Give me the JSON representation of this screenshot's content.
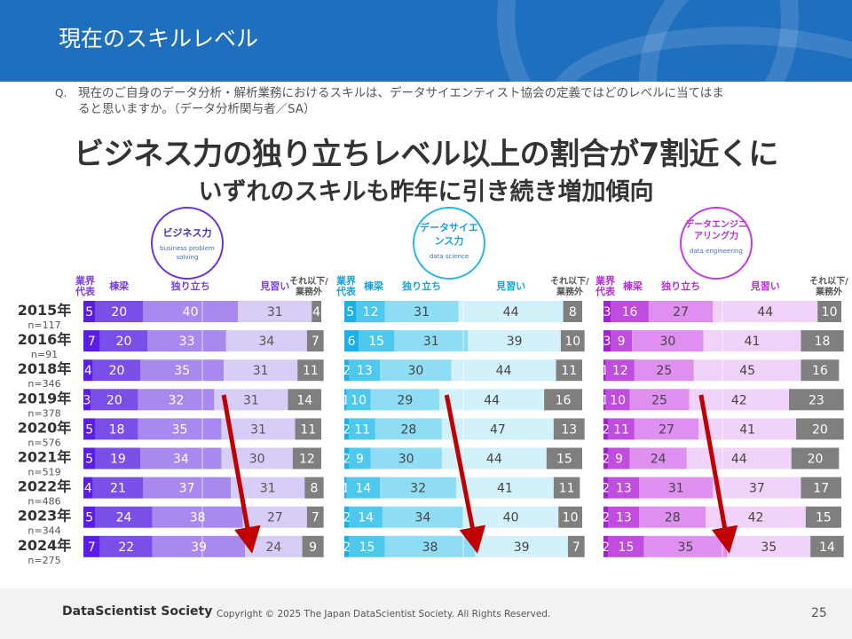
{
  "header": {
    "title": "現在のスキルレベル"
  },
  "question": {
    "label": "Q.",
    "text": "現在のご自身のデータ分析・解析業務におけるスキルは、データサイエンティスト協会の定義ではどのレベルに当てはまると思いますか。（データ分析関与者／SA）"
  },
  "headline": {
    "line1": "ビジネス力の独り立ちレベル以上の割合が7割近くに",
    "line2": "いずれのスキルも昨年に引き続き増加傾向"
  },
  "chart_data": {
    "type": "bar",
    "stacked": true,
    "percent": true,
    "categories": [
      {
        "year": "2015年",
        "n": "n=117"
      },
      {
        "year": "2016年",
        "n": "n=91"
      },
      {
        "year": "2018年",
        "n": "n=346"
      },
      {
        "year": "2019年",
        "n": "n=378"
      },
      {
        "year": "2020年",
        "n": "n=576"
      },
      {
        "year": "2021年",
        "n": "n=519"
      },
      {
        "year": "2022年",
        "n": "n=486"
      },
      {
        "year": "2023年",
        "n": "n=344"
      },
      {
        "year": "2024年",
        "n": "n=275"
      }
    ],
    "levels": [
      {
        "name": "業界代表",
        "label": "業界\n代表"
      },
      {
        "name": "棟梁",
        "label": "棟梁"
      },
      {
        "name": "独り立ち",
        "label": "独り立ち"
      },
      {
        "name": "見習い",
        "label": "見習い"
      },
      {
        "name": "それ以下/業務外",
        "label": "それ以下/\n業務外"
      }
    ],
    "panels": [
      {
        "key": "business",
        "title": "ビジネス力",
        "subtitle": "business problem solving",
        "accent": "#6a35e0",
        "label_color": "#7b3fe4",
        "colors": [
          "#5b1ce6",
          "#7a4fe8",
          "#a889ef",
          "#d8cdf7",
          "#7f7f7f"
        ],
        "text_colors": [
          "#ffffff",
          "#ffffff",
          "#ffffff",
          "#555555",
          "#ffffff"
        ],
        "values": [
          [
            5,
            20,
            40,
            31,
            4
          ],
          [
            7,
            20,
            33,
            34,
            7
          ],
          [
            4,
            20,
            35,
            31,
            11
          ],
          [
            3,
            20,
            32,
            31,
            14
          ],
          [
            5,
            18,
            35,
            31,
            11
          ],
          [
            5,
            19,
            34,
            30,
            12
          ],
          [
            4,
            21,
            37,
            31,
            8
          ],
          [
            5,
            24,
            38,
            27,
            7
          ],
          [
            7,
            22,
            39,
            24,
            9
          ]
        ]
      },
      {
        "key": "datascience",
        "title": "データサイエンス力",
        "subtitle": "data science",
        "accent": "#29b6e8",
        "label_color": "#17a3dc",
        "colors": [
          "#1ab0e8",
          "#4fc8ee",
          "#8fdcf5",
          "#d2f1fb",
          "#7f7f7f"
        ],
        "text_colors": [
          "#ffffff",
          "#ffffff",
          "#444444",
          "#444444",
          "#ffffff"
        ],
        "values": [
          [
            5,
            12,
            31,
            44,
            8
          ],
          [
            6,
            15,
            31,
            39,
            10
          ],
          [
            2,
            13,
            30,
            44,
            11
          ],
          [
            1,
            10,
            29,
            44,
            16
          ],
          [
            2,
            11,
            28,
            47,
            13
          ],
          [
            2,
            9,
            30,
            44,
            15
          ],
          [
            1,
            14,
            32,
            41,
            11
          ],
          [
            2,
            14,
            34,
            40,
            10
          ],
          [
            2,
            15,
            38,
            39,
            7
          ]
        ]
      },
      {
        "key": "engineering",
        "title": "データエンジニアリング力",
        "subtitle": "data engineering",
        "accent": "#c23fe0",
        "label_color": "#b52fd6",
        "colors": [
          "#a321d0",
          "#c04ce0",
          "#de8ff0",
          "#f1d3f9",
          "#7f7f7f"
        ],
        "text_colors": [
          "#ffffff",
          "#ffffff",
          "#444444",
          "#444444",
          "#ffffff"
        ],
        "values": [
          [
            3,
            16,
            27,
            44,
            10
          ],
          [
            3,
            9,
            30,
            41,
            18
          ],
          [
            1,
            12,
            25,
            45,
            16
          ],
          [
            1,
            10,
            25,
            42,
            23
          ],
          [
            2,
            11,
            27,
            41,
            20
          ],
          [
            2,
            9,
            24,
            44,
            20
          ],
          [
            2,
            13,
            31,
            37,
            17
          ],
          [
            2,
            13,
            28,
            42,
            15
          ],
          [
            2,
            15,
            35,
            35,
            14
          ]
        ]
      }
    ],
    "annotations": [
      {
        "type": "arrow",
        "color": "#c00000",
        "meaning": "増加傾向"
      }
    ]
  },
  "footer": {
    "brand": "DataScientist Society",
    "copyright": "Copyright © 2025  The Japan DataScientist Society. All Rights Reserved.",
    "page": "25"
  }
}
